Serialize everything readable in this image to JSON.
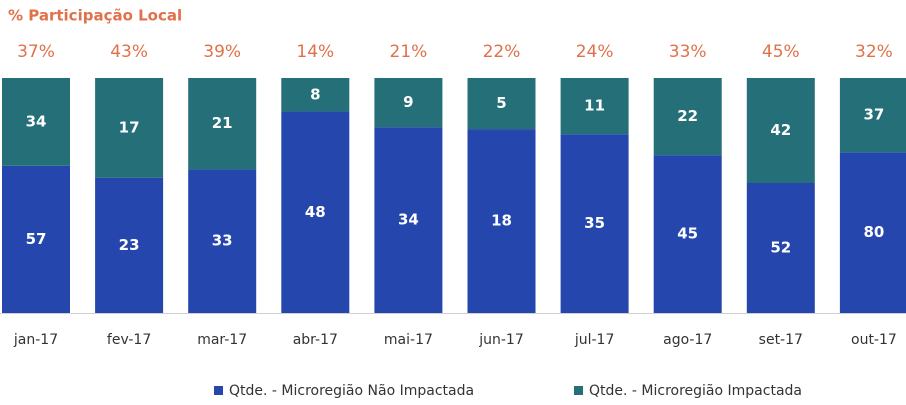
{
  "chart_data": {
    "type": "bar",
    "stacking": "percent",
    "title": "% Participação Local",
    "categories": [
      "jan-17",
      "fev-17",
      "mar-17",
      "abr-17",
      "mai-17",
      "jun-17",
      "jul-17",
      "ago-17",
      "set-17",
      "out-17"
    ],
    "series": [
      {
        "name": "Qtde. - Microregião Não Impactada",
        "color": "#2446ad",
        "values": [
          57,
          23,
          33,
          48,
          34,
          18,
          35,
          45,
          52,
          80
        ]
      },
      {
        "name": "Qtde. - Microregião Impactada",
        "color": "#246f78",
        "values": [
          34,
          17,
          21,
          8,
          9,
          5,
          11,
          22,
          42,
          37
        ]
      }
    ],
    "share": {
      "values": [
        37,
        43,
        39,
        14,
        21,
        22,
        24,
        33,
        45,
        32
      ],
      "value_labels": [
        "37%",
        "43%",
        "39%",
        "14%",
        "21%",
        "22%",
        "24%",
        "33%",
        "45%",
        "32%"
      ],
      "color": "#e0714a"
    },
    "legend": "bottom"
  }
}
